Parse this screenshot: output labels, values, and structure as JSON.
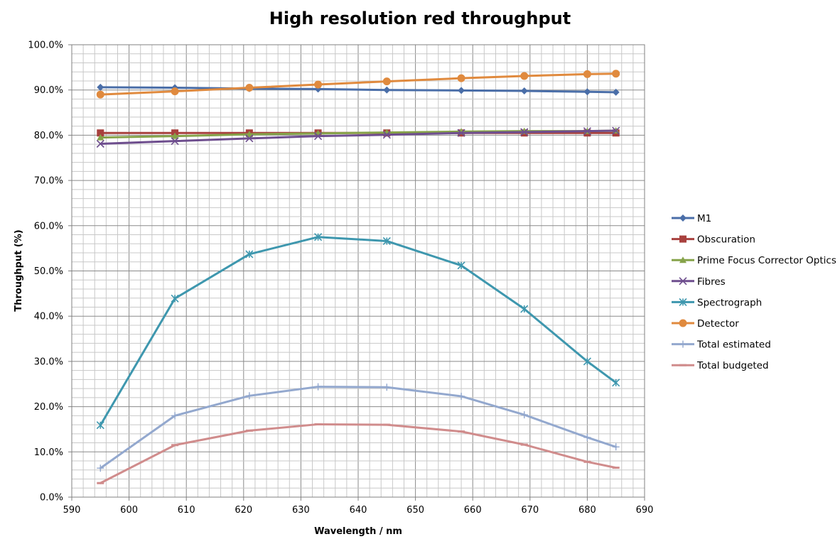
{
  "chart_data": {
    "type": "line",
    "title": "High resolution red throughput",
    "xlabel": "Wavelength / nm",
    "ylabel": "Throughput (%)",
    "xlim": [
      590,
      690
    ],
    "ylim": [
      0,
      100
    ],
    "x_ticks": [
      590,
      600,
      610,
      620,
      630,
      640,
      650,
      660,
      670,
      680,
      690
    ],
    "y_ticks": [
      0,
      10,
      20,
      30,
      40,
      50,
      60,
      70,
      80,
      90,
      100
    ],
    "y_tick_format": "percent_1dp",
    "grid": true,
    "legend_position": "right",
    "x": [
      595,
      608,
      621,
      633,
      645,
      658,
      669,
      680,
      685
    ],
    "series": [
      {
        "name": "M1",
        "color": "#4A6EA8",
        "marker": "diamond",
        "values": [
          90.6,
          90.5,
          90.3,
          90.2,
          90.0,
          89.9,
          89.8,
          89.6,
          89.5
        ]
      },
      {
        "name": "Obscuration",
        "color": "#A8413E",
        "marker": "square",
        "values": [
          80.5,
          80.5,
          80.5,
          80.5,
          80.5,
          80.5,
          80.5,
          80.5,
          80.5
        ]
      },
      {
        "name": "Prime Focus Corrector Optics",
        "color": "#86A34A",
        "marker": "triangle",
        "values": [
          79.5,
          79.8,
          80.2,
          80.4,
          80.6,
          80.8,
          80.9,
          80.9,
          81.0
        ]
      },
      {
        "name": "Fibres",
        "color": "#6E4E8E",
        "marker": "x",
        "values": [
          78.1,
          78.7,
          79.3,
          79.8,
          80.1,
          80.5,
          80.7,
          80.9,
          81.0
        ]
      },
      {
        "name": "Spectrograph",
        "color": "#3E97AE",
        "marker": "star",
        "values": [
          15.9,
          43.9,
          53.7,
          57.5,
          56.6,
          51.2,
          41.6,
          30.0,
          25.3
        ]
      },
      {
        "name": "Detector",
        "color": "#E08A3E",
        "marker": "circle",
        "values": [
          89.0,
          89.7,
          90.5,
          91.2,
          91.9,
          92.6,
          93.1,
          93.5,
          93.6
        ]
      },
      {
        "name": "Total estimated",
        "color": "#93A8CE",
        "marker": "plus",
        "values": [
          6.4,
          18.0,
          22.4,
          24.4,
          24.3,
          22.3,
          18.2,
          13.2,
          11.1
        ]
      },
      {
        "name": "Total budgeted",
        "color": "#D08C8C",
        "marker": "dash",
        "values": [
          3.1,
          11.5,
          14.7,
          16.1,
          16.0,
          14.5,
          11.6,
          7.8,
          6.5
        ]
      }
    ]
  }
}
